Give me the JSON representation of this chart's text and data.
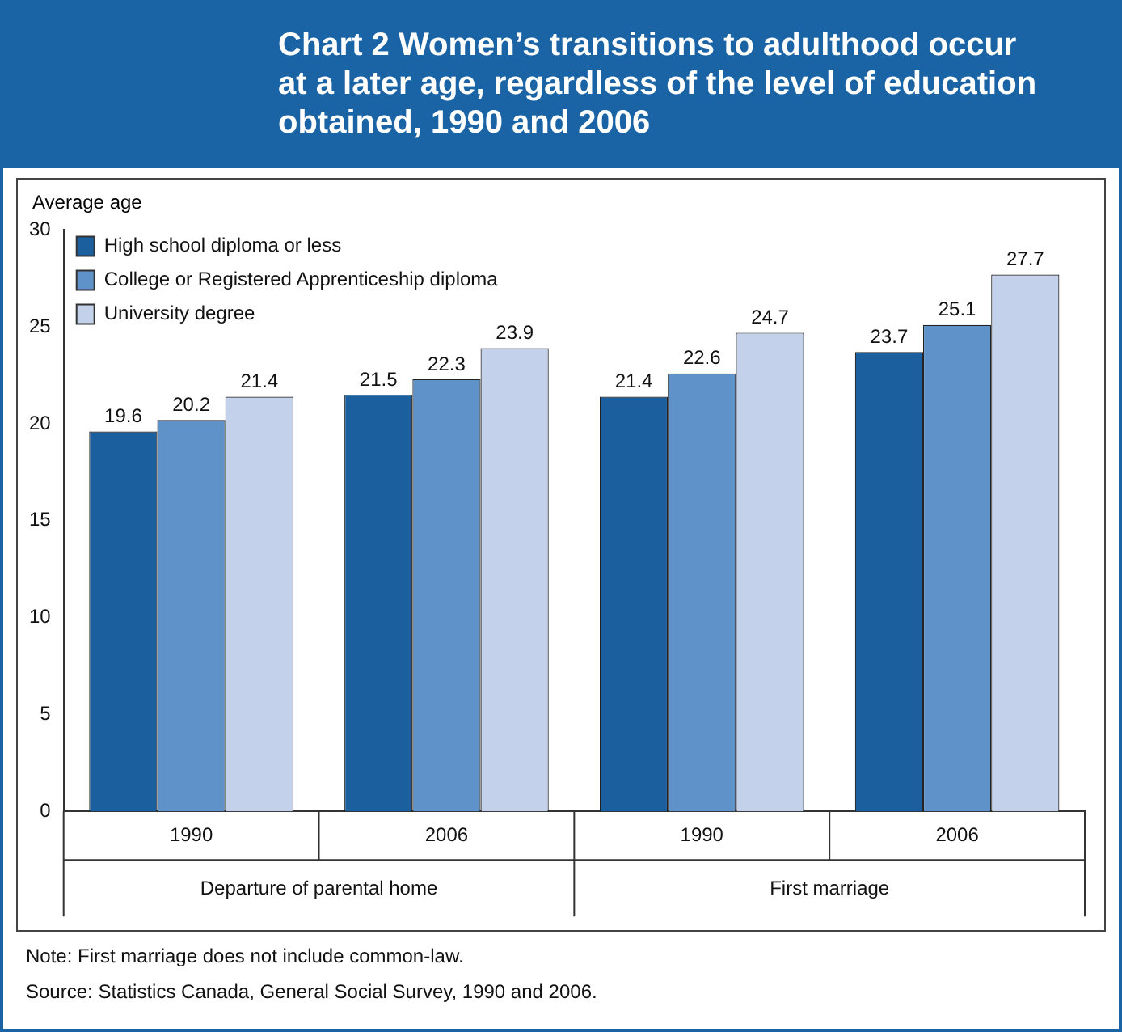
{
  "chart_data": {
    "type": "bar",
    "title": "Chart 2  Women’s transitions to adulthood occur at a later age, regardless of the level of education obtained, 1990 and 2006",
    "ylabel": "Average age",
    "categories": [
      "1990",
      "2006",
      "1990",
      "2006"
    ],
    "series": [
      {
        "name": "High school diploma or less",
        "color": "#1b5f9e",
        "values": [
          19.6,
          21.5,
          21.4,
          23.7
        ]
      },
      {
        "name": "College or Registered Apprenticeship diploma",
        "color": "#5e92c9",
        "values": [
          20.2,
          22.3,
          22.6,
          25.1
        ]
      },
      {
        "name": "University degree",
        "color": "#c3d2ea",
        "values": [
          21.4,
          23.9,
          24.7,
          27.7
        ]
      }
    ],
    "ylim": [
      0,
      30
    ],
    "yticks": [
      0,
      5,
      10,
      15,
      20,
      25,
      30
    ],
    "grid": false,
    "legend": "top left",
    "data_labels": true,
    "annotations": [
      "Departure of parental home",
      "First marriage",
      "Note: First marriage does not include common-law.",
      "Source: Statistics Canada, General Social Survey, 1990 and 2006."
    ]
  }
}
